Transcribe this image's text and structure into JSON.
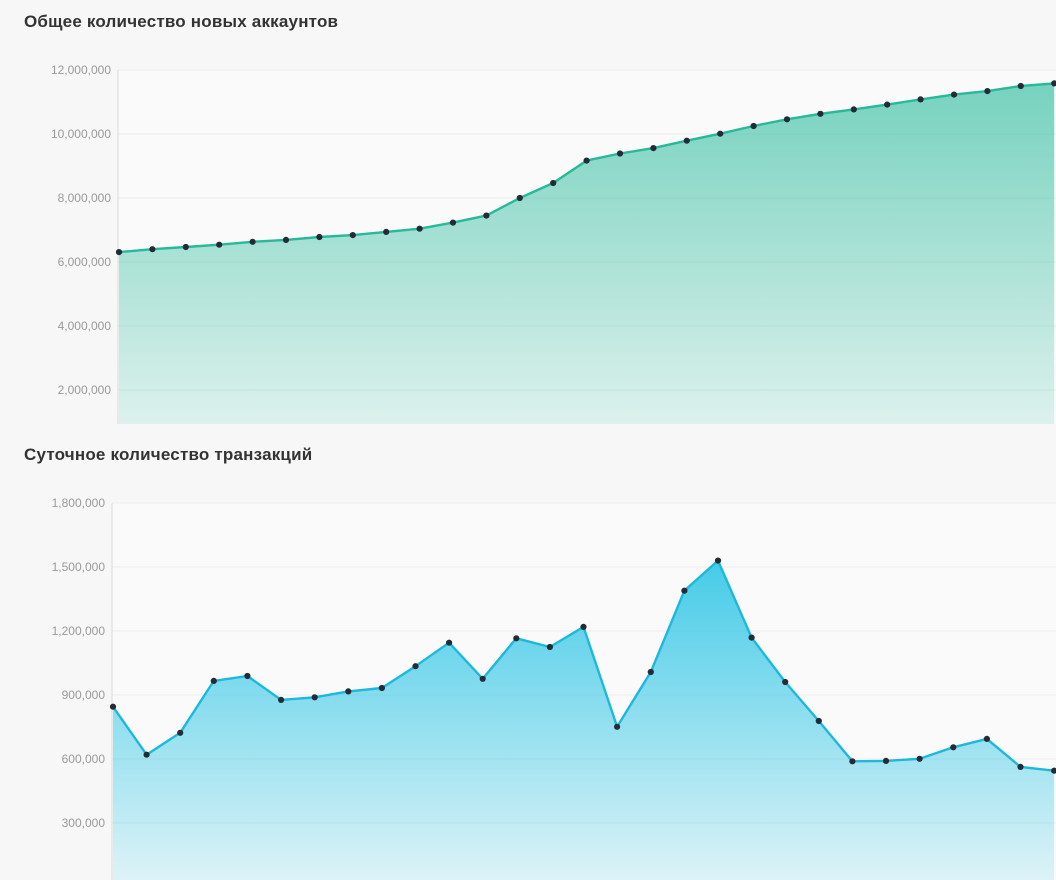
{
  "theme": {
    "page_bg": "#f7f7f7",
    "plot_bg": "#fafafa",
    "grid_color": "#ececec",
    "axis_color": "#d9d9d9",
    "tick_label_color": "#9a9a9a",
    "title_color": "#333333"
  },
  "chart_data": [
    {
      "type": "area",
      "title": "Общее количество новых аккаунтов",
      "xlabel": "",
      "ylabel": "",
      "legend": "none",
      "grid": "horizontal",
      "x_axis_labels_visible": false,
      "ylim": [
        0,
        12000000
      ],
      "y_tick_step": 2000000,
      "y_ticks": [
        {
          "label": "12,000,000",
          "value": 12000000
        },
        {
          "label": "10,000,000",
          "value": 10000000
        },
        {
          "label": "8,000,000",
          "value": 8000000
        },
        {
          "label": "6,000,000",
          "value": 6000000
        },
        {
          "label": "4,000,000",
          "value": 4000000
        },
        {
          "label": "2,000,000",
          "value": 2000000
        }
      ],
      "values": [
        6310000,
        6400000,
        6470000,
        6540000,
        6630000,
        6690000,
        6780000,
        6840000,
        6940000,
        7040000,
        7230000,
        7450000,
        8000000,
        8470000,
        9170000,
        9390000,
        9560000,
        9790000,
        10010000,
        10250000,
        10460000,
        10630000,
        10770000,
        10920000,
        11080000,
        11230000,
        11340000,
        11500000,
        11580000
      ],
      "style": {
        "line_color": "#26b99a",
        "marker_color": "#232c36",
        "area_color_rgb": "38,185,154",
        "area_top_alpha": 0.62,
        "area_bottom_alpha": 0.14
      }
    },
    {
      "type": "area",
      "title": "Суточное количество транзакций",
      "xlabel": "",
      "ylabel": "",
      "legend": "none",
      "grid": "horizontal",
      "x_axis_labels_visible": false,
      "ylim": [
        0,
        1800000
      ],
      "y_tick_step": 300000,
      "y_ticks": [
        {
          "label": "1,800,000",
          "value": 1800000
        },
        {
          "label": "1,500,000",
          "value": 1500000
        },
        {
          "label": "1,200,000",
          "value": 1200000
        },
        {
          "label": "900,000",
          "value": 900000
        },
        {
          "label": "600,000",
          "value": 600000
        },
        {
          "label": "300,000",
          "value": 300000
        }
      ],
      "values": [
        845000,
        620000,
        723000,
        966000,
        989000,
        877000,
        889000,
        917000,
        933000,
        1035000,
        1145000,
        976000,
        1166000,
        1125000,
        1219000,
        751000,
        1008000,
        1389000,
        1530000,
        1169000,
        961000,
        778000,
        589000,
        591000,
        601000,
        655000,
        694000,
        563000,
        545000
      ],
      "style": {
        "line_color": "#1cb9dc",
        "marker_color": "#232c36",
        "area_color_rgb": "44,197,229",
        "area_top_alpha": 0.88,
        "area_bottom_alpha": 0.14
      }
    }
  ]
}
